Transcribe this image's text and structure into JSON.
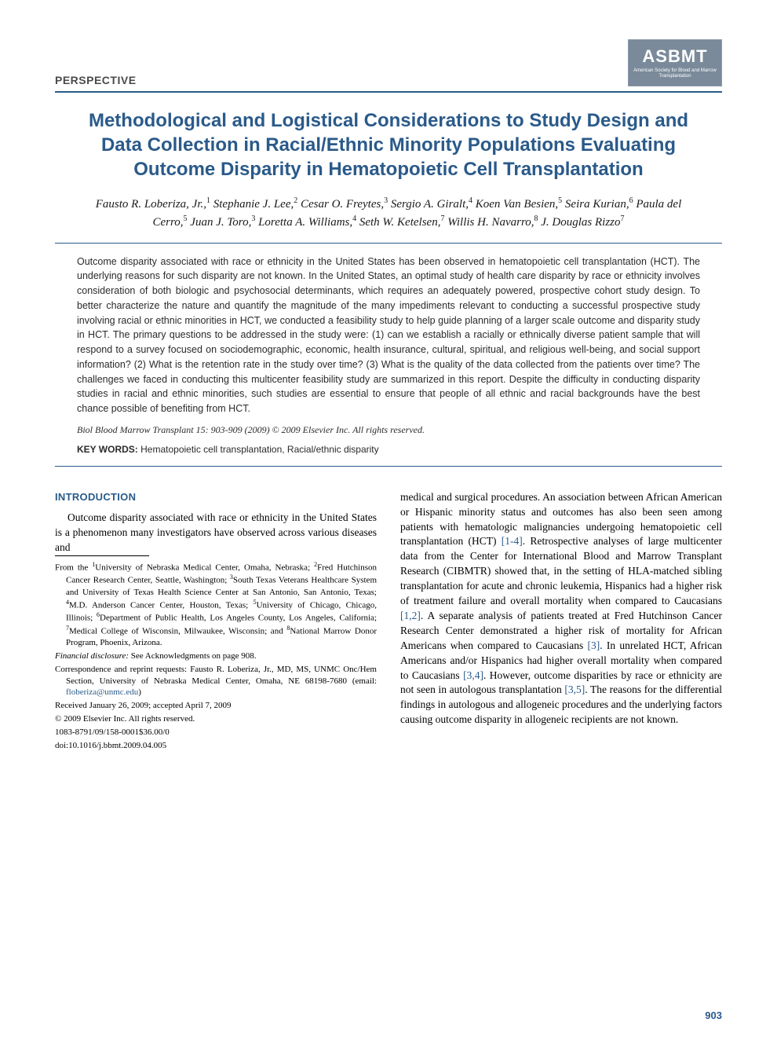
{
  "header": {
    "section_label": "PERSPECTIVE",
    "logo": {
      "main": "ASBMT",
      "sub": "American Society for Blood and Marrow Transplantation"
    }
  },
  "title": "Methodological and Logistical Considerations to Study Design and Data Collection in Racial/Ethnic Minority Populations Evaluating Outcome Disparity in Hematopoietic Cell Transplantation",
  "authors_html": "Fausto R. Loberiza, Jr.,<sup>1</sup> Stephanie J. Lee,<sup>2</sup> Cesar O. Freytes,<sup>3</sup> Sergio A. Giralt,<sup>4</sup> Koen Van Besien,<sup>5</sup> Seira Kurian,<sup>6</sup> Paula del Cerro,<sup>5</sup> Juan J. Toro,<sup>3</sup> Loretta A. Williams,<sup>4</sup> Seth W. Ketelsen,<sup>7</sup> Willis H. Navarro,<sup>8</sup> J. Douglas Rizzo<sup>7</sup>",
  "abstract": "Outcome disparity associated with race or ethnicity in the United States has been observed in hematopoietic cell transplantation (HCT). The underlying reasons for such disparity are not known. In the United States, an optimal study of health care disparity by race or ethnicity involves consideration of both biologic and psychosocial determinants, which requires an adequately powered, prospective cohort study design. To better characterize the nature and quantify the magnitude of the many impediments relevant to conducting a successful prospective study involving racial or ethnic minorities in HCT, we conducted a feasibility study to help guide planning of a larger scale outcome and disparity study in HCT. The primary questions to be addressed in the study were: (1) can we establish a racially or ethnically diverse patient sample that will respond to a survey focused on sociodemographic, economic, health insurance, cultural, spiritual, and religious well-being, and social support information? (2) What is the retention rate in the study over time? (3) What is the quality of the data collected from the patients over time? The challenges we faced in conducting this multicenter feasibility study are summarized in this report. Despite the difficulty in conducting disparity studies in racial and ethnic minorities, such studies are essential to ensure that people of all ethnic and racial backgrounds have the best chance possible of benefiting from HCT.",
  "citation": "Biol Blood Marrow Transplant 15: 903-909 (2009) © 2009 Elsevier Inc. All rights reserved.",
  "keywords": {
    "label": "KEY WORDS:",
    "text": "Hematopoietic cell transplantation, Racial/ethnic disparity"
  },
  "introduction": {
    "heading": "INTRODUCTION",
    "left_para": "Outcome disparity associated with race or ethnicity in the United States is a phenomenon many investigators have observed across various diseases and",
    "right_para_html": "medical and surgical procedures. An association between African American or Hispanic minority status and outcomes has also been seen among patients with hematologic malignancies undergoing hematopoietic cell transplantation (HCT) <span class=\"ref-link\">[1-4]</span>. Retrospective analyses of large multicenter data from the Center for International Blood and Marrow Transplant Research (CIBMTR) showed that, in the setting of HLA-matched sibling transplantation for acute and chronic leukemia, Hispanics had a higher risk of treatment failure and overall mortality when compared to Caucasians <span class=\"ref-link\">[1,2]</span>. A separate analysis of patients treated at Fred Hutchinson Cancer Research Center demonstrated a higher risk of mortality for African Americans when compared to Caucasians <span class=\"ref-link\">[3]</span>. In unrelated HCT, African Americans and/or Hispanics had higher overall mortality when compared to Caucasians <span class=\"ref-link\">[3,4]</span>. However, outcome disparities by race or ethnicity are not seen in autologous transplantation <span class=\"ref-link\">[3,5]</span>. The reasons for the differential findings in autologous and allogeneic procedures and the underlying factors causing outcome disparity in allogeneic recipients are not known."
  },
  "footnotes": {
    "affiliations_html": "From the <sup>1</sup>University of Nebraska Medical Center, Omaha, Nebraska; <sup>2</sup>Fred Hutchinson Cancer Research Center, Seattle, Washington; <sup>3</sup>South Texas Veterans Healthcare System and University of Texas Health Science Center at San Antonio, San Antonio, Texas; <sup>4</sup>M.D. Anderson Cancer Center, Houston, Texas; <sup>5</sup>University of Chicago, Chicago, Illinois; <sup>6</sup>Department of Public Health, Los Angeles County, Los Angeles, California; <sup>7</sup>Medical College of Wisconsin, Milwaukee, Wisconsin; and <sup>8</sup>National Marrow Donor Program, Phoenix, Arizona.",
    "financial": "Financial disclosure: See Acknowledgments on page 908.",
    "financial_label": "Financial disclosure:",
    "financial_text": " See Acknowledgments on page 908.",
    "correspondence_html": "Correspondence and reprint requests: Fausto R. Loberiza, Jr., MD, MS, UNMC Onc/Hem Section, University of Nebraska Medical Center, Omaha, NE 68198-7680 (email: <span class=\"email-link\">floberiza@unmc.edu</span>)",
    "received": "Received January 26, 2009; accepted April 7, 2009",
    "copyright": "© 2009 Elsevier Inc. All rights reserved.",
    "code": "1083-8791/09/158-0001$36.00/0",
    "doi": "doi:10.1016/j.bbmt.2009.04.005"
  },
  "page_number": "903",
  "colors": {
    "accent": "#2a5a8a",
    "logo_bg": "#7a8a9a",
    "text": "#000000",
    "abstract_text": "#2a2a2a"
  }
}
